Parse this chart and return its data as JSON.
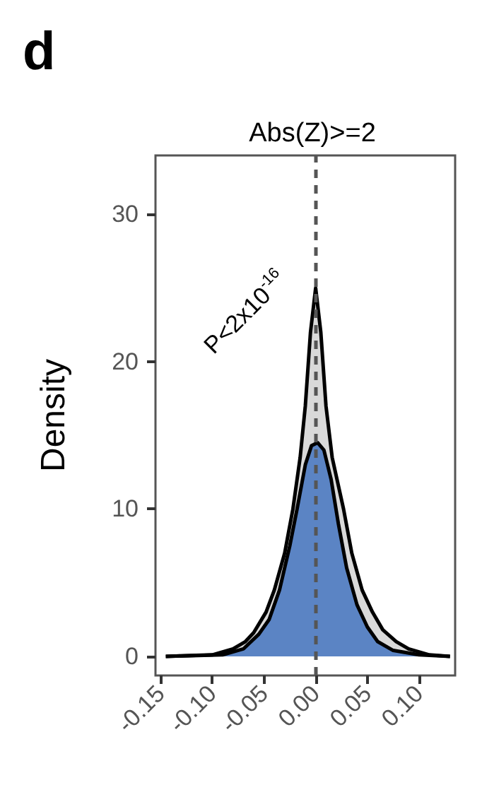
{
  "chart_data": {
    "type": "area",
    "title": "Abs(Z)>=2",
    "ylabel": "Density",
    "annotations": [
      "d",
      "P<2x10$^{-16}$"
    ],
    "xlim": [
      -0.155,
      0.135
    ],
    "xticks": [
      {
        "value": -0.15,
        "label": "-0.15"
      },
      {
        "value": -0.1,
        "label": "-0.10"
      },
      {
        "value": -0.05,
        "label": "-0.05"
      },
      {
        "value": 0,
        "label": "0.00"
      },
      {
        "value": 0.05,
        "label": "0.05"
      },
      {
        "value": 0.1,
        "label": "0.10"
      }
    ],
    "ylim": [
      -1.3,
      34
    ],
    "yticks": [
      0,
      10,
      20,
      30
    ],
    "grid": false,
    "ref_lines": [
      {
        "axis": "x",
        "value": 0,
        "color": "#555555",
        "line_style": "dashed"
      }
    ],
    "series": [
      {
        "color": "#d9d9d9",
        "x": [
          -0.145,
          -0.1,
          -0.08,
          -0.068,
          -0.06,
          -0.048,
          -0.04,
          -0.03,
          -0.022,
          -0.015,
          -0.01,
          -0.005,
          0,
          0.005,
          0.01,
          0.016,
          0.027,
          0.035,
          0.045,
          0.055,
          0.065,
          0.078,
          0.09,
          0.11,
          0.13
        ],
        "values": [
          0,
          0.1,
          0.5,
          1,
          1.6,
          3,
          4.5,
          7,
          10,
          13.5,
          17,
          22,
          25,
          22,
          17,
          13.5,
          10,
          7,
          4.5,
          3,
          1.8,
          1,
          0.5,
          0.1,
          0
        ]
      },
      {
        "color": "#5b84c4",
        "x": [
          -0.145,
          -0.09,
          -0.07,
          -0.055,
          -0.045,
          -0.035,
          -0.025,
          -0.018,
          -0.01,
          -0.004,
          0.002,
          0.008,
          0.015,
          0.022,
          0.03,
          0.04,
          0.05,
          0.06,
          0.075,
          0.1,
          0.13
        ],
        "values": [
          0,
          0.1,
          0.5,
          1.5,
          2.5,
          4.5,
          7.5,
          10,
          13,
          14.3,
          14.5,
          14,
          12,
          9,
          6,
          3.5,
          2,
          1,
          0.4,
          0.1,
          0
        ]
      }
    ]
  }
}
